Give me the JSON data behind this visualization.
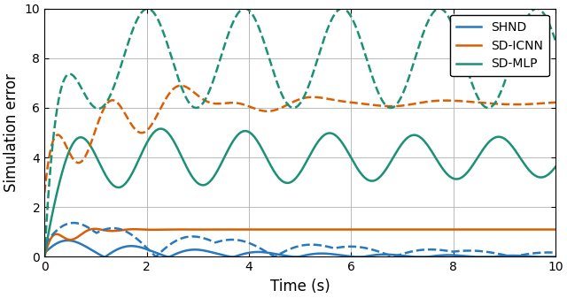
{
  "title": "",
  "xlabel": "Time (s)",
  "ylabel": "Simulation error",
  "xlim": [
    0,
    10
  ],
  "ylim": [
    0,
    10
  ],
  "colors": {
    "SHND": "#2878bd",
    "SD-ICNN": "#d95f02",
    "SD-MLP": "#1a9175"
  },
  "legend_labels": [
    "SHND",
    "SD-ICNN",
    "SD-MLP"
  ],
  "grid": true,
  "figsize": [
    6.4,
    3.37
  ],
  "dpi": 100
}
